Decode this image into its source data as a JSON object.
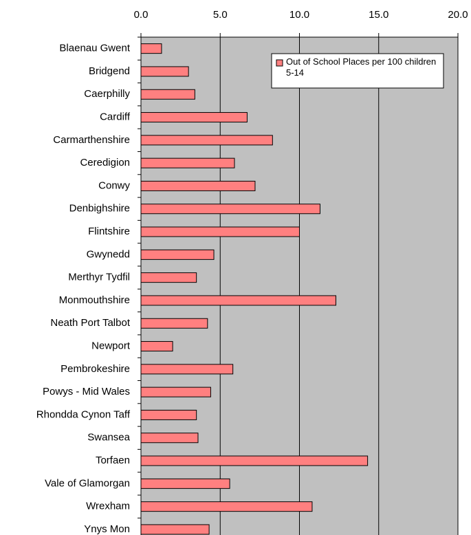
{
  "chart_data": {
    "type": "bar",
    "orientation": "horizontal",
    "categories": [
      "Blaenau Gwent",
      "Bridgend",
      "Caerphilly",
      "Cardiff",
      "Carmarthenshire",
      "Ceredigion",
      "Conwy",
      "Denbighshire",
      "Flintshire",
      "Gwynedd",
      "Merthyr Tydfil",
      "Monmouthshire",
      "Neath Port Talbot",
      "Newport",
      "Pembrokeshire",
      "Powys - Mid Wales",
      "Rhondda Cynon Taff",
      "Swansea",
      "Torfaen",
      "Vale of Glamorgan",
      "Wrexham",
      "Ynys  Mon"
    ],
    "series": [
      {
        "name": "Out of School Places per 100 children 5-14",
        "color": "#ff8080",
        "values": [
          1.3,
          3.0,
          3.4,
          6.7,
          8.3,
          5.9,
          7.2,
          11.3,
          10.0,
          4.6,
          3.5,
          12.3,
          4.2,
          2.0,
          5.8,
          4.4,
          3.5,
          3.6,
          14.3,
          5.6,
          10.8,
          4.3
        ]
      }
    ],
    "xlim": [
      0,
      20
    ],
    "xticks": [
      {
        "value": 0,
        "label": "0.0"
      },
      {
        "value": 5,
        "label": "5.0"
      },
      {
        "value": 10,
        "label": "10.0"
      },
      {
        "value": 15,
        "label": "15.0"
      },
      {
        "value": 20,
        "label": "20.0"
      }
    ],
    "grid": true,
    "legend": "top-right"
  }
}
